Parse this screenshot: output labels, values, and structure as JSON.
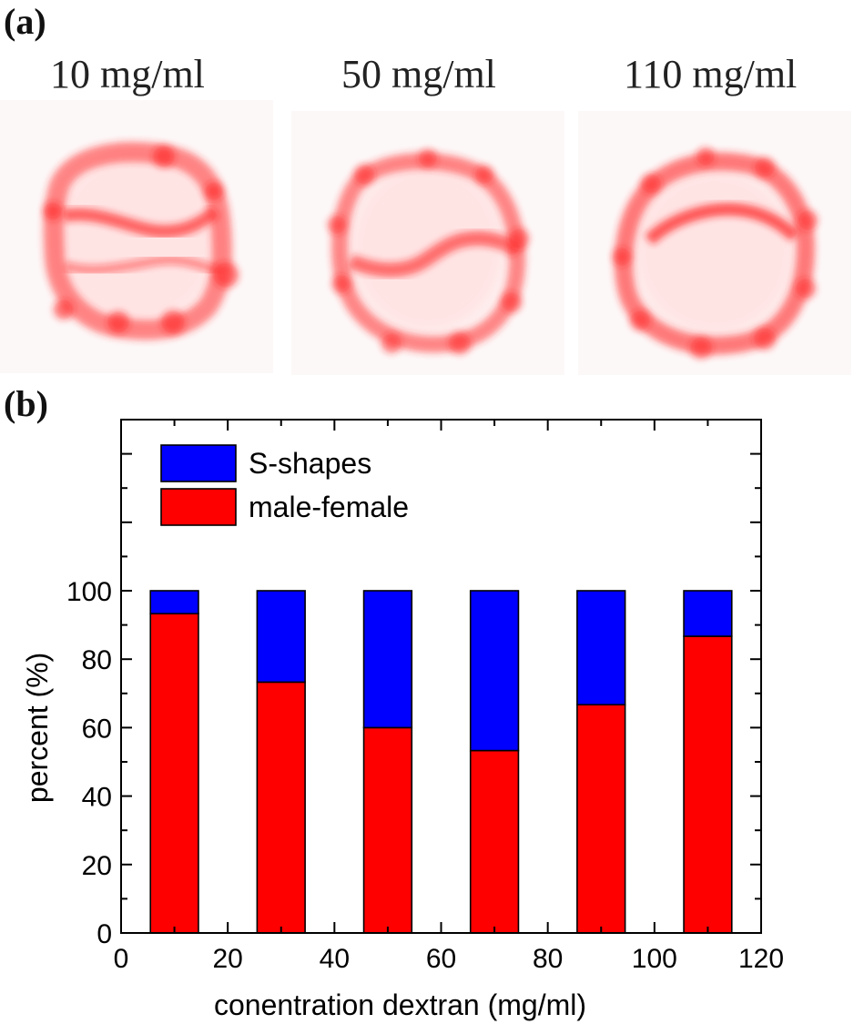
{
  "panel_a": {
    "label": "(a)",
    "images": [
      {
        "caption": "10 mg/ml",
        "shape": "S-shape-cell"
      },
      {
        "caption": "50 mg/ml",
        "shape": "S-shape-cell"
      },
      {
        "caption": "110 mg/ml",
        "shape": "male-female-cell"
      }
    ]
  },
  "panel_b": {
    "label": "(b)"
  },
  "colors": {
    "s_shapes": "#0000ff",
    "male_female": "#ff0000",
    "cell_stain": "#ff2020"
  },
  "chart_data": {
    "type": "bar",
    "stacked": true,
    "x": [
      10,
      30,
      50,
      70,
      90,
      110
    ],
    "series": [
      {
        "name": "male-female",
        "values": [
          93.3,
          73.3,
          60,
          53.3,
          66.7,
          86.7
        ]
      },
      {
        "name": "S-shapes",
        "values": [
          6.7,
          26.7,
          40,
          46.7,
          33.3,
          13.3
        ]
      }
    ],
    "bar_width": 9,
    "xlabel": "conentration dextran (mg/ml)",
    "ylabel": "percent (%)",
    "xlim": [
      0,
      120
    ],
    "ylim": [
      0,
      150
    ],
    "xticks": [
      0,
      20,
      40,
      60,
      80,
      100,
      120
    ],
    "yticks": [
      0,
      20,
      40,
      60,
      80,
      100
    ],
    "legend": {
      "position": "top-left",
      "entries": [
        "S-shapes",
        "male-female"
      ]
    }
  }
}
